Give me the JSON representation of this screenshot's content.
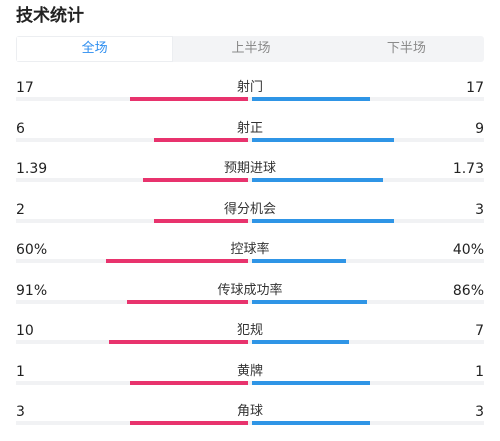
{
  "title": "技术统计",
  "tabs": [
    {
      "label": "全场",
      "active": true
    },
    {
      "label": "上半场",
      "active": false
    },
    {
      "label": "下半场",
      "active": false
    }
  ],
  "colors": {
    "home": "#e8336d",
    "away": "#2f95e6",
    "active_tab": "#2d8ef0"
  },
  "stats": [
    {
      "label": "射门",
      "home": "17",
      "away": "17",
      "home_share": 0.5,
      "away_share": 0.5
    },
    {
      "label": "射正",
      "home": "6",
      "away": "9",
      "home_share": 0.4,
      "away_share": 0.6
    },
    {
      "label": "预期进球",
      "home": "1.39",
      "away": "1.73",
      "home_share": 0.4455,
      "away_share": 0.5545
    },
    {
      "label": "得分机会",
      "home": "2",
      "away": "3",
      "home_share": 0.4,
      "away_share": 0.6
    },
    {
      "label": "控球率",
      "home": "60%",
      "away": "40%",
      "home_share": 0.6,
      "away_share": 0.4
    },
    {
      "label": "传球成功率",
      "home": "91%",
      "away": "86%",
      "home_share": 0.514,
      "away_share": 0.486
    },
    {
      "label": "犯规",
      "home": "10",
      "away": "7",
      "home_share": 0.588,
      "away_share": 0.412
    },
    {
      "label": "黄牌",
      "home": "1",
      "away": "1",
      "home_share": 0.5,
      "away_share": 0.5
    },
    {
      "label": "角球",
      "home": "3",
      "away": "3",
      "home_share": 0.5,
      "away_share": 0.5
    }
  ]
}
